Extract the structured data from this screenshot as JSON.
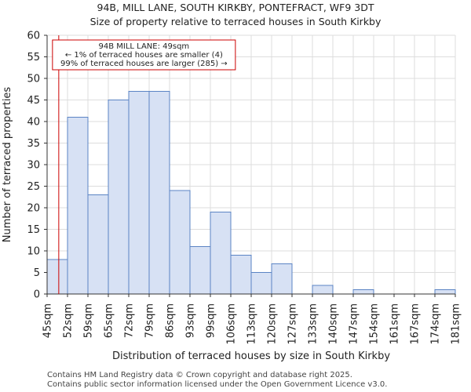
{
  "chart_data": {
    "type": "histogram",
    "title_line1": "94B, MILL LANE, SOUTH KIRKBY, PONTEFRACT, WF9 3DT",
    "title_line2": "Size of property relative to terraced houses in South Kirkby",
    "xlabel": "Distribution of terraced houses by size in South Kirkby",
    "ylabel": "Number of terraced properties",
    "ylim": [
      0,
      60
    ],
    "yticks": [
      "0",
      "5",
      "10",
      "15",
      "20",
      "25",
      "30",
      "35",
      "40",
      "45",
      "50",
      "55",
      "60"
    ],
    "categories": [
      "45sqm",
      "52sqm",
      "59sqm",
      "65sqm",
      "72sqm",
      "79sqm",
      "86sqm",
      "93sqm",
      "99sqm",
      "106sqm",
      "113sqm",
      "120sqm",
      "127sqm",
      "133sqm",
      "140sqm",
      "147sqm",
      "154sqm",
      "161sqm",
      "167sqm",
      "174sqm",
      "181sqm"
    ],
    "values": [
      8,
      41,
      23,
      45,
      47,
      47,
      24,
      11,
      19,
      9,
      5,
      7,
      0,
      2,
      0,
      1,
      0,
      0,
      0,
      1
    ],
    "marker_value_sqm": 49,
    "annotation": {
      "line1": "94B MILL LANE: 49sqm",
      "line2": "← 1% of terraced houses are smaller (4)",
      "line3": "99% of terraced houses are larger (285) →"
    },
    "colors": {
      "bar_fill": "#d7e1f4",
      "bar_edge": "#5b84c4",
      "marker": "#cc0000",
      "grid": "#dddddd"
    }
  },
  "footer": {
    "line1": "Contains HM Land Registry data © Crown copyright and database right 2025.",
    "line2": "Contains public sector information licensed under the Open Government Licence v3.0."
  }
}
